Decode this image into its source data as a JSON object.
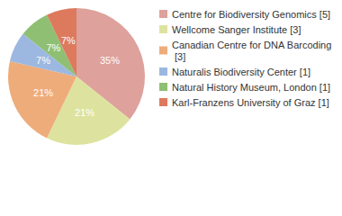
{
  "chart_data": {
    "type": "pie",
    "categories": [
      "Centre for Biodiversity Genomics [5]",
      "Wellcome Sanger Institute [3]",
      "Canadian Centre for DNA Barcoding [3]",
      "Naturalis Biodiversity Center [1]",
      "Natural History Museum, London [1]",
      "Karl-Franzens University of Graz [1]"
    ],
    "values": [
      35,
      21,
      21,
      7,
      7,
      7
    ],
    "value_labels": [
      "35%",
      "21%",
      "21%",
      "7%",
      "7%",
      "7%"
    ],
    "colors": [
      "#dea19b",
      "#dde39e",
      "#eeac7a",
      "#9cb8e0",
      "#8fbf73",
      "#dd7a5e"
    ],
    "data_labels": true,
    "legend": "right"
  }
}
